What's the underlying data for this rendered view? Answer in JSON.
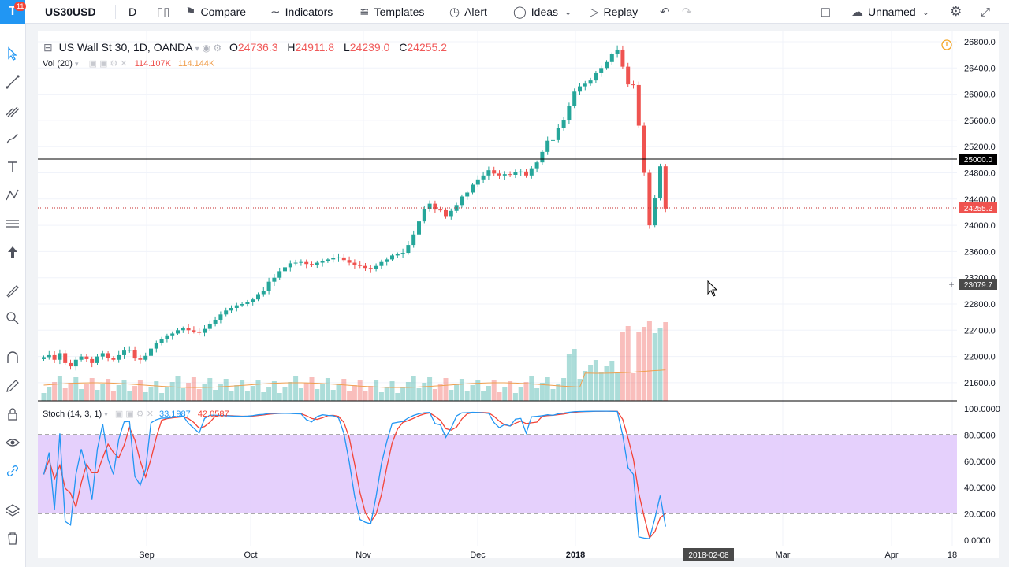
{
  "toolbar": {
    "notifications": "11",
    "symbol": "US30USD",
    "interval": "D",
    "compare": "Compare",
    "indicators": "Indicators",
    "templates": "Templates",
    "alert": "Alert",
    "ideas": "Ideas",
    "replay": "Replay",
    "layout_name": "Unnamed"
  },
  "legend": {
    "title": "US Wall St 30, 1D, OANDA",
    "open_label": "O",
    "open": "24736.3",
    "high_label": "H",
    "high": "24911.8",
    "low_label": "L",
    "low": "24239.0",
    "close_label": "C",
    "close": "24255.2",
    "vol_title": "Vol (20)",
    "vol_value": "114.107K",
    "vol_ma": "114.144K",
    "stoch_title": "Stoch (14, 3, 1)",
    "stoch_k": "33.1987",
    "stoch_d": "42.0587"
  },
  "price_axis": {
    "ticks": [
      "26800.0",
      "26400.0",
      "26000.0",
      "25600.0",
      "25200.0",
      "24800.0",
      "24400.0",
      "24000.0",
      "23600.0",
      "23200.0",
      "22800.0",
      "22400.0",
      "22000.0",
      "21600.0"
    ],
    "hline_label": "25000.0",
    "last_label": "24255.2",
    "cursor_label": "23079.7"
  },
  "stoch_axis": {
    "ticks": [
      "100.0000",
      "80.0000",
      "60.0000",
      "40.0000",
      "20.0000",
      "0.0000"
    ]
  },
  "time_axis": {
    "ticks": [
      "Sep",
      "Oct",
      "Nov",
      "Dec",
      "2018",
      "Mar",
      "Apr",
      "18"
    ],
    "cursor_date": "2018-02-08"
  },
  "colors": {
    "up": "#26a69a",
    "down": "#ef5350",
    "stoch_k": "#2196f3",
    "stoch_d": "#f44336",
    "stoch_band": "#e1c8fb",
    "hline": "#000000",
    "last_price": "#ef5350"
  },
  "chart_data": {
    "type": "candlestick",
    "title": "US Wall St 30, 1D, OANDA",
    "ylim": [
      21300,
      26950
    ],
    "horizontal_line": 25000,
    "last_price": 24255.2,
    "close_series": [
      21990,
      22020,
      21950,
      22050,
      21900,
      21850,
      21950,
      22000,
      21960,
      21900,
      22000,
      22050,
      21980,
      21950,
      22020,
      22090,
      22100,
      21970,
      21950,
      22010,
      22120,
      22200,
      22260,
      22310,
      22350,
      22400,
      22430,
      22400,
      22380,
      22360,
      22420,
      22500,
      22560,
      22640,
      22700,
      22740,
      22780,
      22800,
      22830,
      22870,
      22950,
      23000,
      23140,
      23200,
      23300,
      23360,
      23420,
      23430,
      23440,
      23410,
      23400,
      23430,
      23460,
      23480,
      23500,
      23510,
      23470,
      23430,
      23400,
      23380,
      23350,
      23330,
      23380,
      23440,
      23480,
      23540,
      23560,
      23580,
      23700,
      23860,
      24060,
      24250,
      24330,
      24240,
      24230,
      24140,
      24220,
      24310,
      24440,
      24500,
      24620,
      24700,
      24760,
      24840,
      24790,
      24760,
      24780,
      24770,
      24810,
      24820,
      24760,
      24870,
      24960,
      25120,
      25290,
      25300,
      25490,
      25600,
      25820,
      26040,
      26120,
      26160,
      26210,
      26320,
      26400,
      26490,
      26610,
      26680,
      26420,
      26150,
      26140,
      25520,
      24800,
      24000,
      24420,
      24900,
      24255
    ]
  }
}
